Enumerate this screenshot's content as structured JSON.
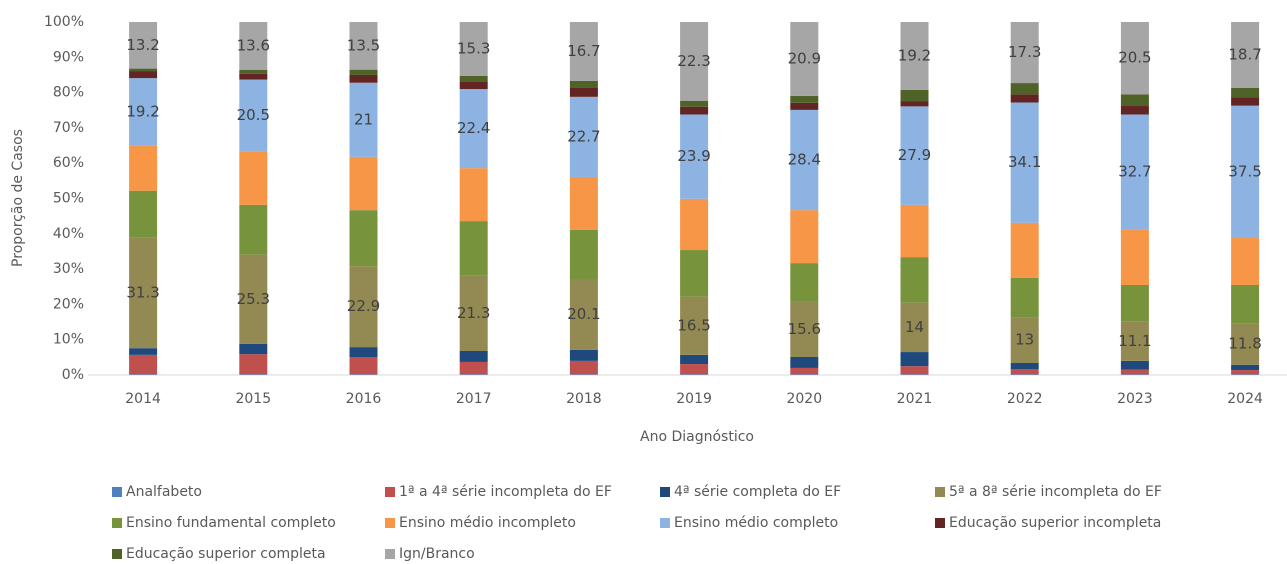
{
  "chart_data": {
    "type": "stacked_bar_100",
    "x_label": "Ano Diagnóstico",
    "y_label": "Proporção de Casos",
    "categories": [
      "2014",
      "2015",
      "2016",
      "2017",
      "2018",
      "2019",
      "2020",
      "2021",
      "2022",
      "2023",
      "2024"
    ],
    "ylim": [
      0,
      100
    ],
    "yticks": [
      {
        "value": 0,
        "label": "0%"
      },
      {
        "value": 10,
        "label": "10%"
      },
      {
        "value": 20,
        "label": "20%"
      },
      {
        "value": 30,
        "label": "30%"
      },
      {
        "value": 40,
        "label": "40%"
      },
      {
        "value": 50,
        "label": "50%"
      },
      {
        "value": 60,
        "label": "60%"
      },
      {
        "value": 70,
        "label": "70%"
      },
      {
        "value": 80,
        "label": "80%"
      },
      {
        "value": 90,
        "label": "90%"
      },
      {
        "value": 100,
        "label": "100%"
      }
    ],
    "legend": "bottom",
    "series": [
      {
        "name": "Analfabeto",
        "color": "#4f81bd",
        "values": [
          0.2,
          0.2,
          0.2,
          0.2,
          0.2,
          0.2,
          0.2,
          0.2,
          0.2,
          0.2,
          0.2
        ]
      },
      {
        "name": "1ª a 4ª série incompleta do EF",
        "color": "#c0504d",
        "values": [
          5.5,
          5.7,
          4.9,
          3.5,
          3.8,
          2.9,
          1.8,
          2.3,
          1.5,
          1.3,
          1.2
        ]
      },
      {
        "name": "4ª série completa do EF",
        "color": "#1f497d",
        "values": [
          1.9,
          2.9,
          2.8,
          3.1,
          3.1,
          2.6,
          3.1,
          4.0,
          1.7,
          2.5,
          1.5
        ]
      },
      {
        "name": "5ª a 8ª série incompleta do EF",
        "color": "#938953",
        "values": [
          31.3,
          25.3,
          22.9,
          21.3,
          20.1,
          16.5,
          15.6,
          14.0,
          13.0,
          11.1,
          11.8
        ],
        "show_labels": true
      },
      {
        "name": "Ensino fundamental completo",
        "color": "#77933c",
        "values": [
          13.3,
          14.1,
          15.9,
          15.5,
          13.9,
          13.2,
          11.0,
          12.9,
          11.1,
          10.4,
          10.8
        ]
      },
      {
        "name": "Ensino médio incompleto",
        "color": "#f79646",
        "values": [
          12.7,
          15.0,
          15.1,
          15.0,
          15.0,
          14.5,
          15.0,
          14.8,
          15.6,
          15.6,
          13.3
        ]
      },
      {
        "name": "Ensino médio completo",
        "color": "#8db3e2",
        "values": [
          19.2,
          20.5,
          21.0,
          22.4,
          22.7,
          23.9,
          28.4,
          27.9,
          34.1,
          32.7,
          37.5
        ],
        "show_labels": true
      },
      {
        "name": "Educação superior incompleta",
        "color": "#632523",
        "values": [
          2.0,
          1.6,
          2.2,
          2.2,
          2.7,
          2.2,
          2.0,
          1.5,
          2.3,
          2.4,
          2.3
        ]
      },
      {
        "name": "Educação superior completa",
        "color": "#4f6228",
        "values": [
          0.7,
          1.1,
          1.5,
          1.5,
          1.8,
          1.7,
          2.0,
          3.2,
          3.2,
          3.3,
          2.7
        ]
      },
      {
        "name": "Ign/Branco",
        "color": "#a6a6a6",
        "values": [
          13.2,
          13.6,
          13.5,
          15.3,
          16.7,
          22.3,
          20.9,
          19.2,
          17.3,
          20.5,
          18.7
        ],
        "show_labels": true
      }
    ]
  }
}
